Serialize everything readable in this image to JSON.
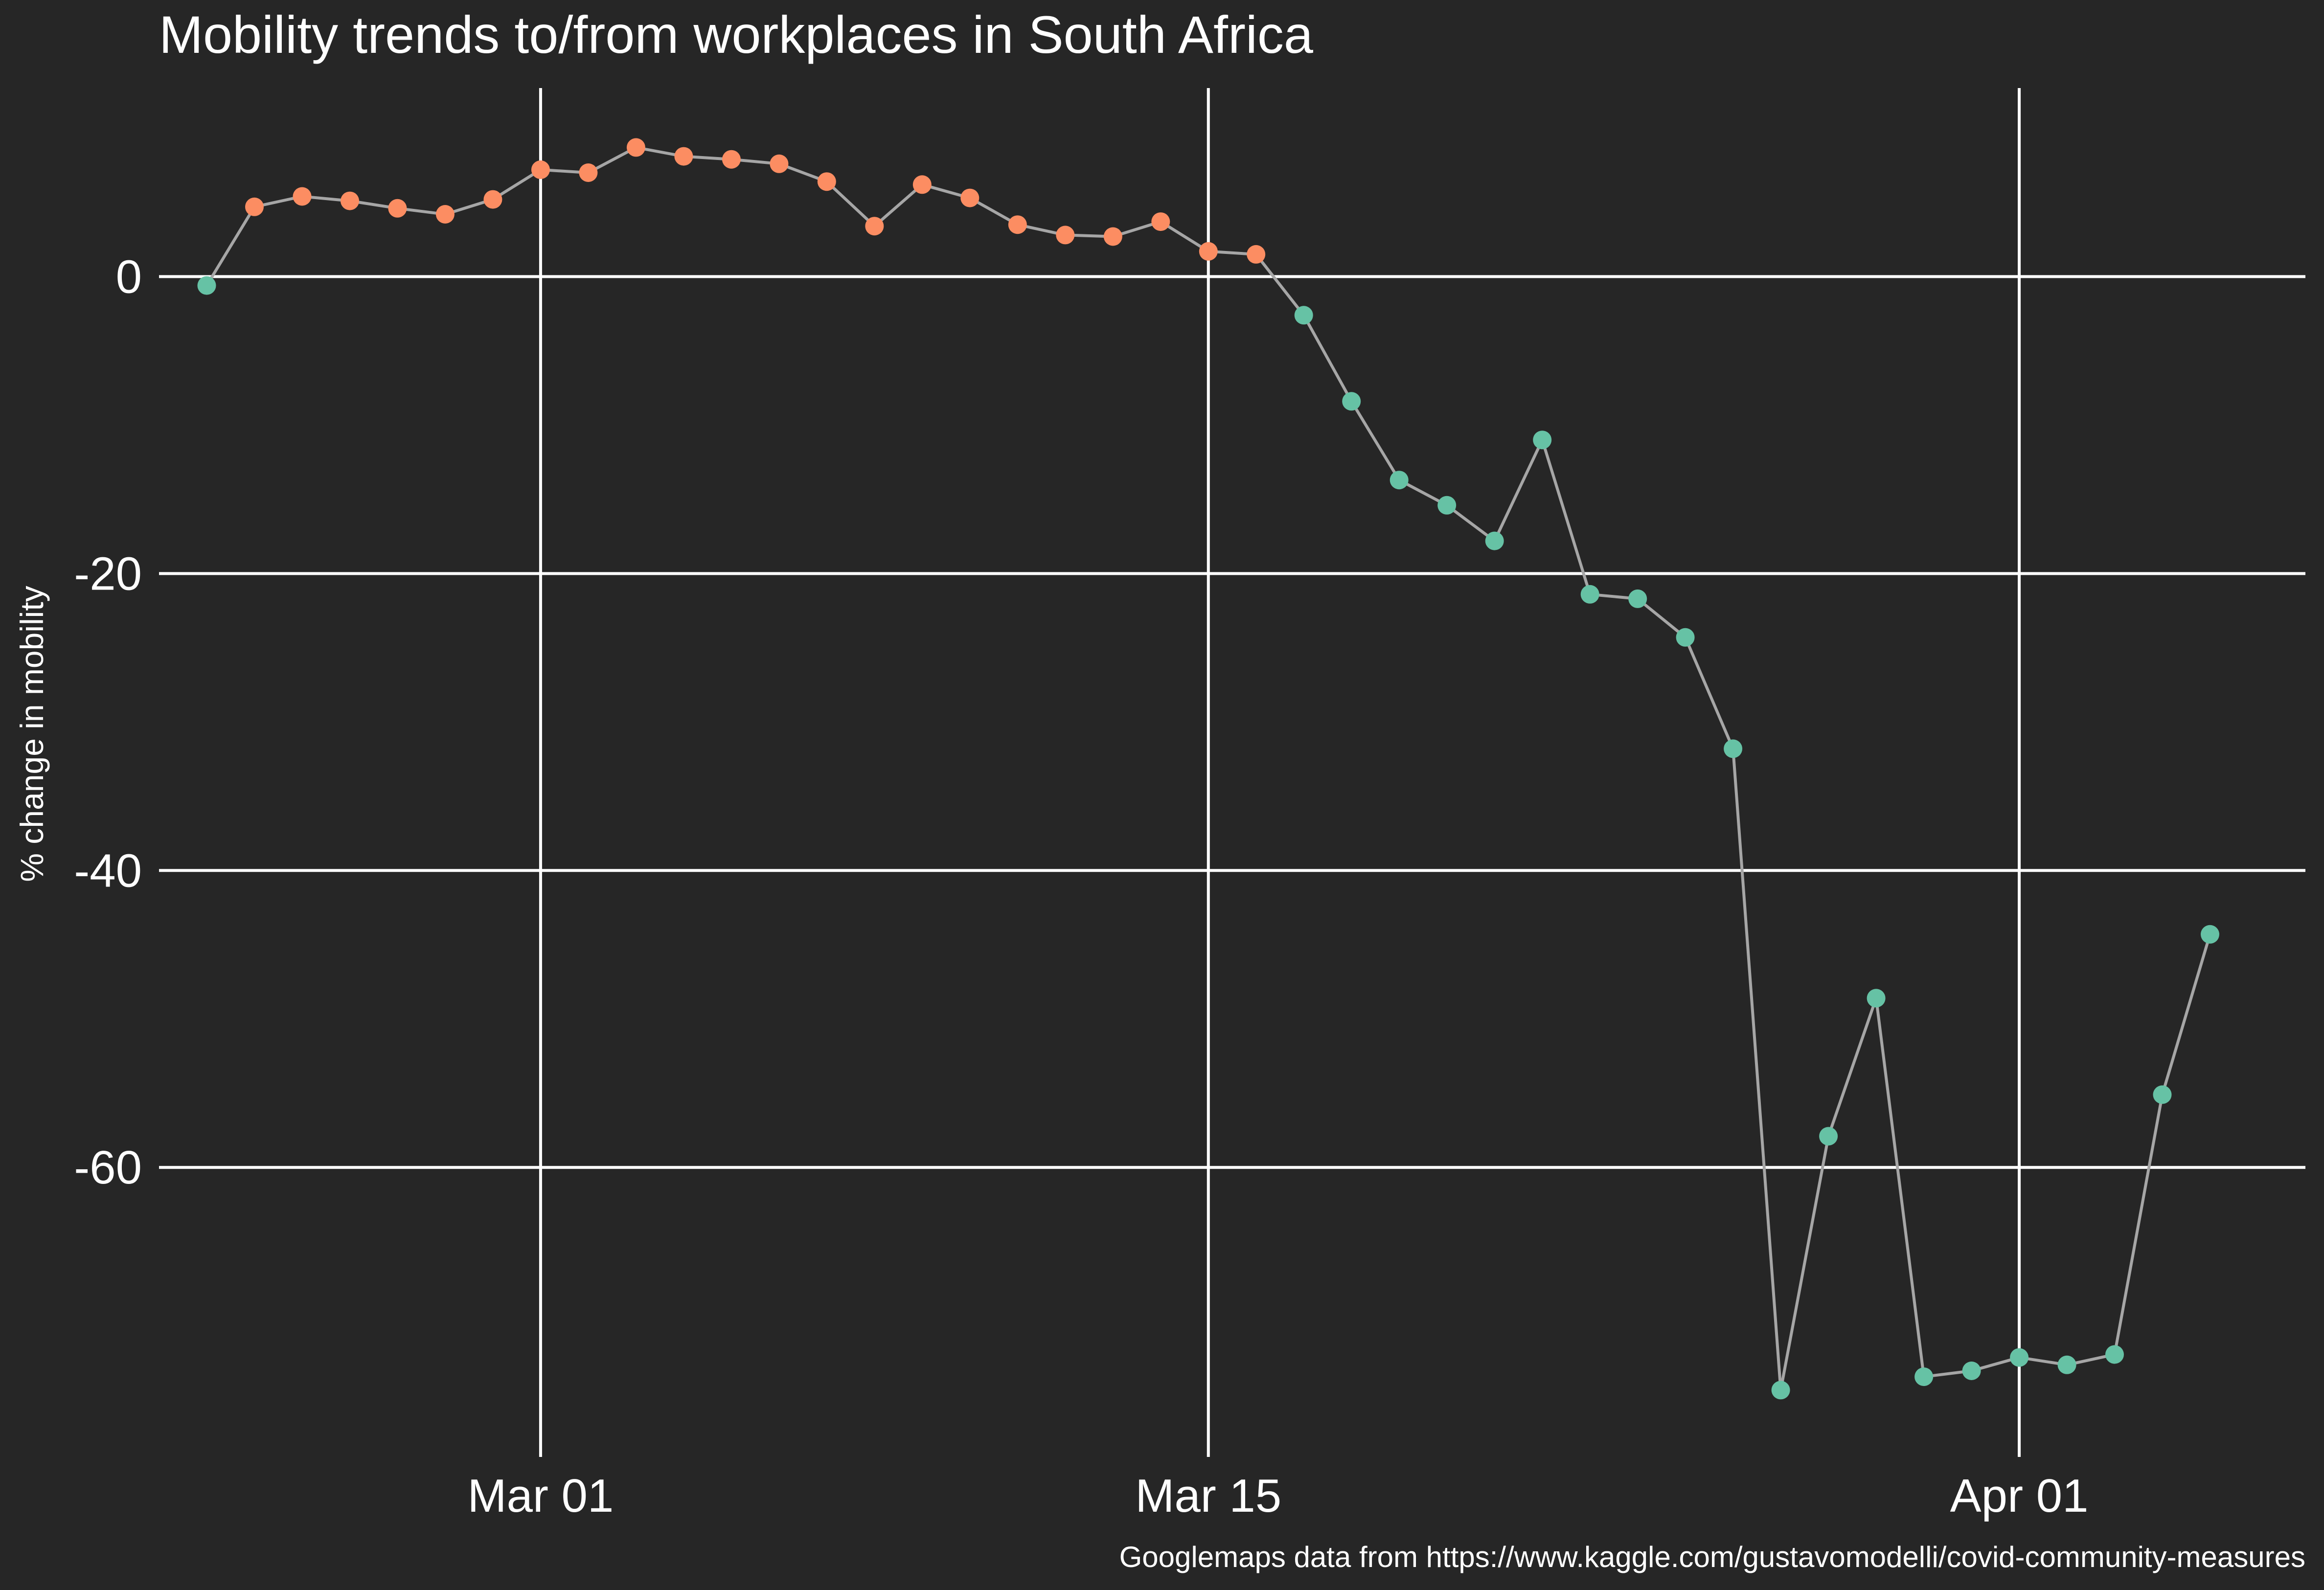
{
  "chart_data": {
    "type": "line",
    "title": "Mobility trends to/from workplaces in South Africa",
    "xlabel": "",
    "ylabel": "% change in mobility",
    "caption": "Googlemaps data from https://www.kaggle.com/gustavomodelli/covid-community-measures",
    "grid": true,
    "legend": "none",
    "x_axis": {
      "type": "date",
      "ticks": [
        {
          "date": "2020-03-01",
          "label": "Mar 01"
        },
        {
          "date": "2020-03-15",
          "label": "Mar 15"
        },
        {
          "date": "2020-04-01",
          "label": "Apr 01"
        }
      ],
      "xlim": [
        "2020-02-22",
        "2020-04-07"
      ]
    },
    "y_axis": {
      "ticks": [
        0,
        -20,
        -40,
        -60
      ],
      "tick_labels": [
        "0",
        "-20",
        "-40",
        "-60"
      ],
      "ylim": [
        -79.5,
        12.7
      ]
    },
    "colors": {
      "background": "#262626",
      "positive": "#fc8d62",
      "negative": "#66c2a5",
      "line": "#a6a6a6",
      "grid": "#ffffff",
      "text": "#ffffff"
    },
    "series": [
      {
        "x": [
          "2020-02-23",
          "2020-02-24",
          "2020-02-25",
          "2020-02-26",
          "2020-02-27",
          "2020-02-28",
          "2020-02-29",
          "2020-03-01",
          "2020-03-02",
          "2020-03-03",
          "2020-03-04",
          "2020-03-05",
          "2020-03-06",
          "2020-03-07",
          "2020-03-08",
          "2020-03-09",
          "2020-03-10",
          "2020-03-11",
          "2020-03-12",
          "2020-03-13",
          "2020-03-14",
          "2020-03-15",
          "2020-03-16",
          "2020-03-17",
          "2020-03-18",
          "2020-03-19",
          "2020-03-20",
          "2020-03-21",
          "2020-03-22",
          "2020-03-23",
          "2020-03-24",
          "2020-03-25",
          "2020-03-26",
          "2020-03-27",
          "2020-03-28",
          "2020-03-29",
          "2020-03-30",
          "2020-03-31",
          "2020-04-01",
          "2020-04-02",
          "2020-04-03",
          "2020-04-04",
          "2020-04-05"
        ],
        "y": [
          -0.6,
          4.7,
          5.4,
          5.1,
          4.6,
          4.2,
          5.2,
          7.2,
          7.0,
          8.7,
          8.1,
          7.9,
          7.6,
          6.4,
          3.4,
          6.2,
          5.3,
          3.5,
          2.8,
          2.7,
          3.7,
          1.7,
          1.5,
          -2.6,
          -8.4,
          -13.7,
          -15.4,
          -17.8,
          -11.0,
          -21.4,
          -21.7,
          -24.3,
          -31.8,
          -75.0,
          -57.9,
          -48.6,
          -74.1,
          -73.7,
          -72.8,
          -73.3,
          -72.6,
          -55.1,
          -44.3
        ]
      }
    ]
  }
}
